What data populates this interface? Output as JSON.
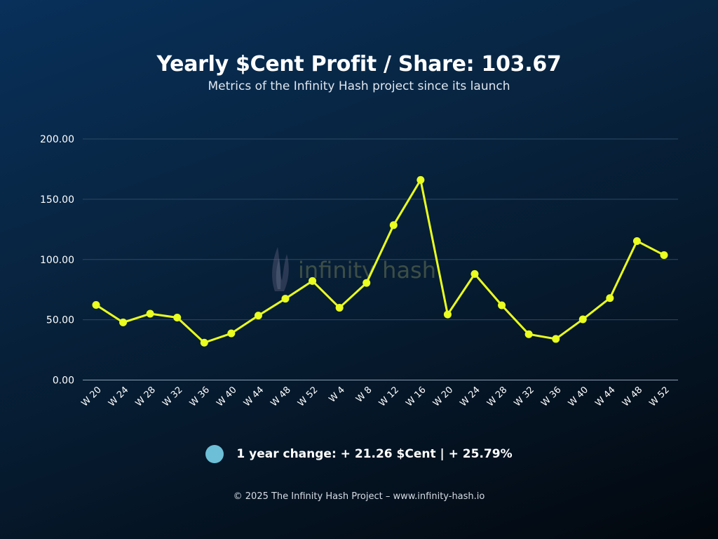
{
  "header": {
    "title": "Yearly $Cent Profit / Share: 103.67",
    "subtitle": "Metrics of the Infinity Hash project since its launch"
  },
  "watermark": {
    "text": "infinity hash"
  },
  "legend": {
    "text": "1 year change: + 21.26 $Cent | + 25.79%",
    "color": "#6cbfd6"
  },
  "footer": {
    "text": "© 2025 The Infinity Hash Project – www.infinity-hash.io"
  },
  "chart_data": {
    "type": "line",
    "title": "Yearly $Cent Profit / Share: 103.67",
    "subtitle": "Metrics of the Infinity Hash project since its launch",
    "xlabel": "",
    "ylabel": "",
    "categories": [
      "W 20",
      "W 24",
      "W 28",
      "W 32",
      "W 36",
      "W 40",
      "W 44",
      "W 48",
      "W 52",
      "W 4",
      "W 8",
      "W 12",
      "W 16",
      "W 20",
      "W 24",
      "W 28",
      "W 32",
      "W 36",
      "W 40",
      "W 44",
      "W 48",
      "W 52"
    ],
    "series": [
      {
        "values": [
          62.3,
          47.8,
          55.0,
          51.8,
          31.0,
          38.7,
          53.5,
          67.5,
          82.2,
          60.0,
          80.6,
          128.5,
          166.0,
          54.4,
          88.0,
          62.0,
          38.0,
          34.1,
          50.4,
          68.0,
          115.3,
          103.67
        ],
        "color": "#eaff1f"
      }
    ],
    "ylim": [
      0,
      200
    ],
    "yticks": [
      "0.00",
      "50.00",
      "100.00",
      "150.00",
      "200.00"
    ],
    "grid": true,
    "legend_position": "bottom"
  }
}
